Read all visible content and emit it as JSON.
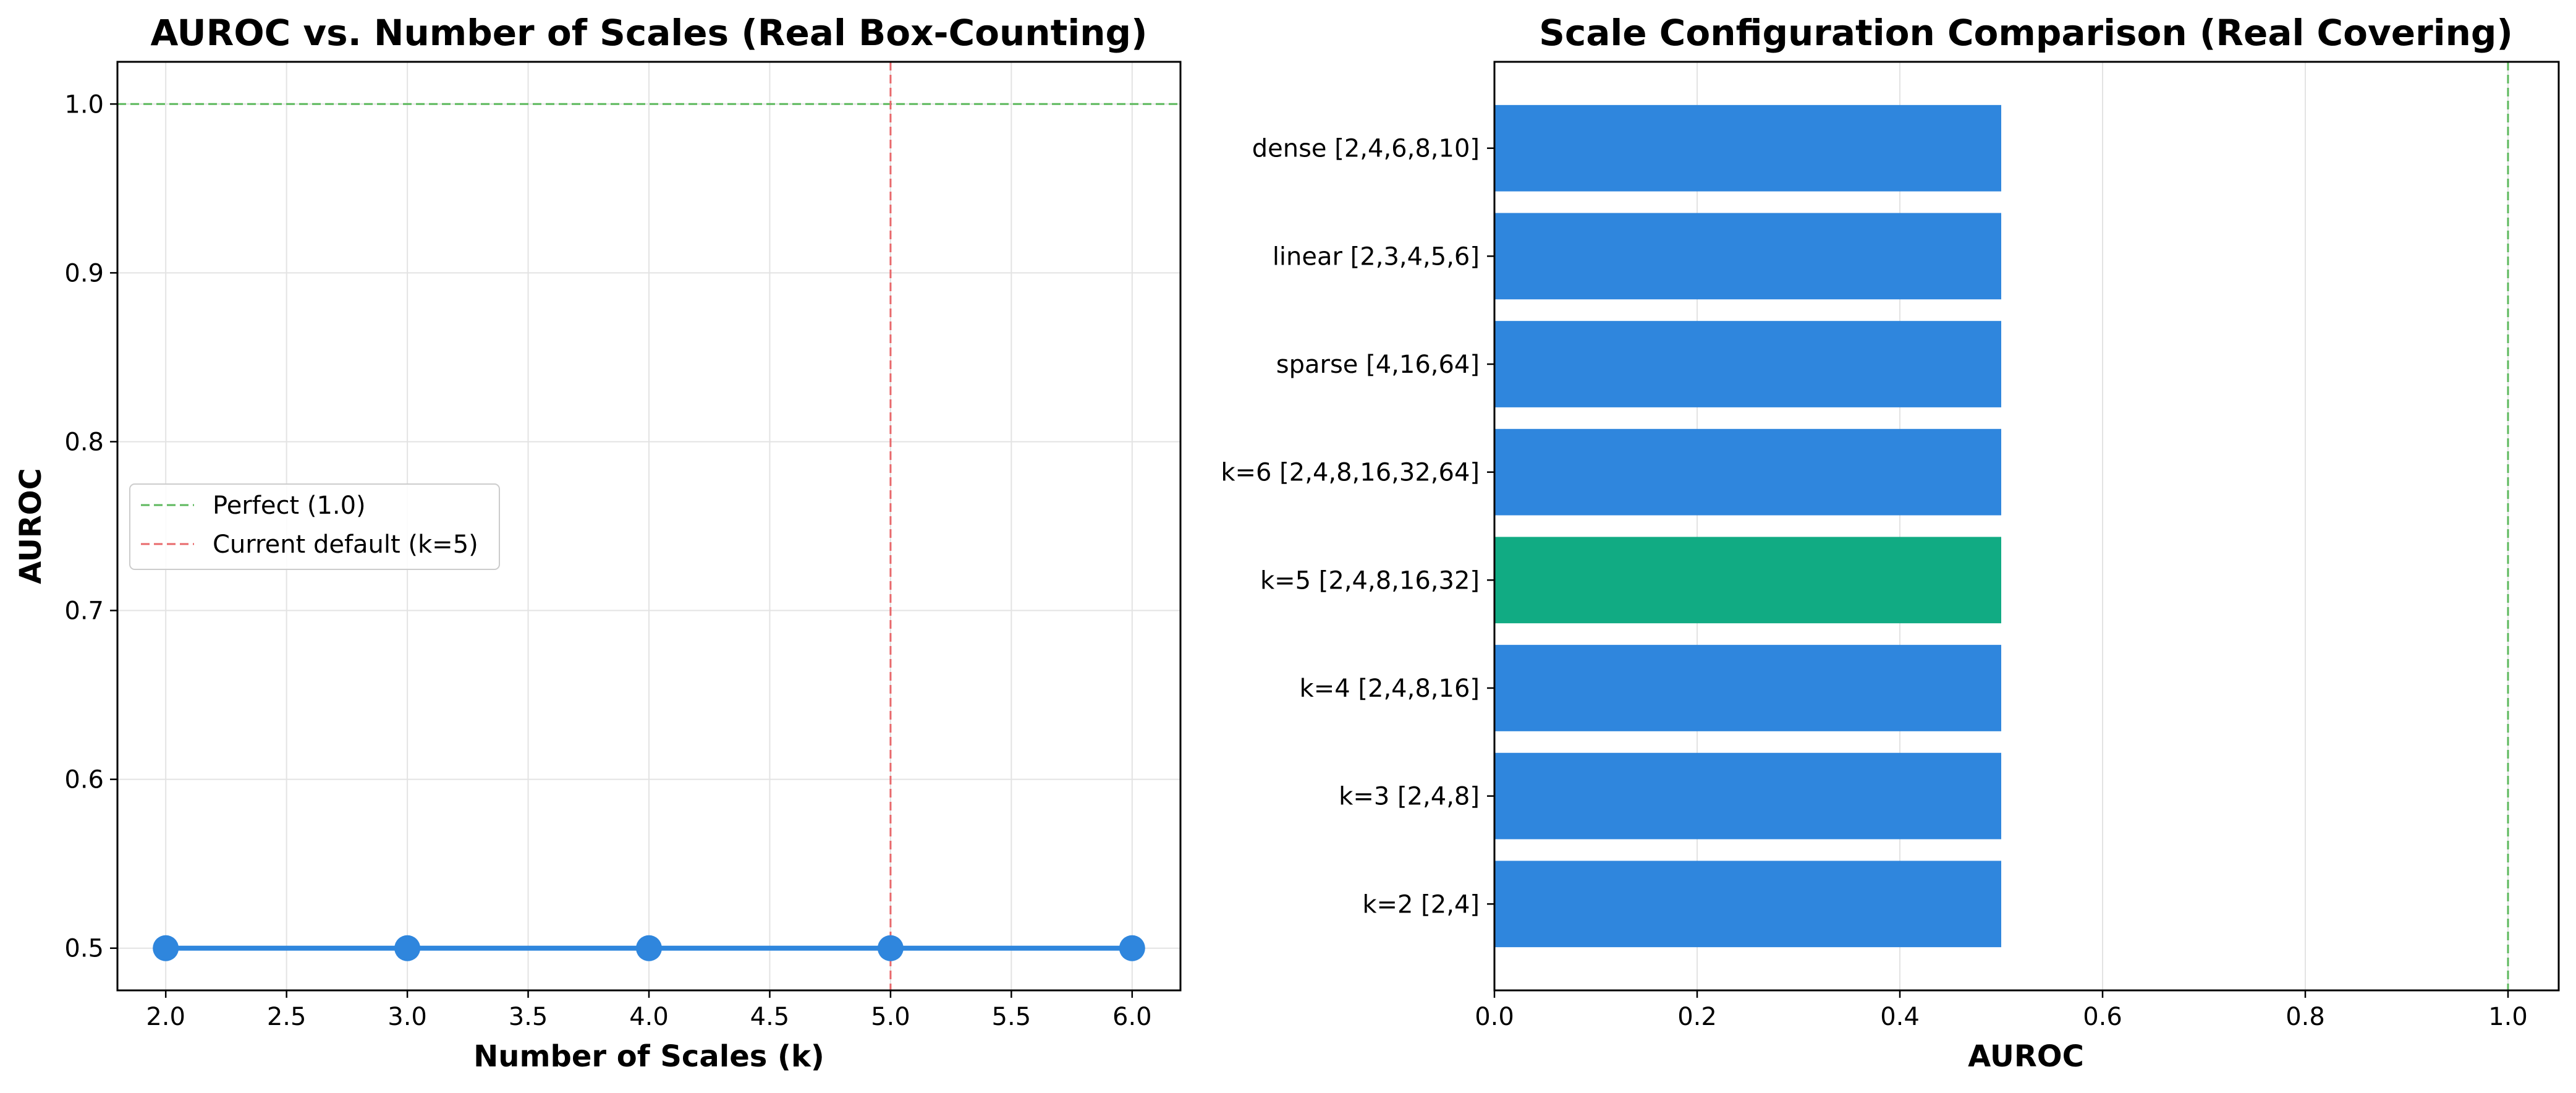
{
  "chart_data": [
    {
      "type": "line",
      "title": "AUROC vs. Number of Scales (Real Box-Counting)",
      "xlabel": "Number of Scales (k)",
      "ylabel": "AUROC",
      "xlim": [
        1.8,
        6.2
      ],
      "ylim": [
        0.475,
        1.025
      ],
      "xticks": [
        2.0,
        2.5,
        3.0,
        3.5,
        4.0,
        4.5,
        5.0,
        5.5,
        6.0
      ],
      "xtick_labels": [
        "2.0",
        "2.5",
        "3.0",
        "3.5",
        "4.0",
        "4.5",
        "5.0",
        "5.5",
        "6.0"
      ],
      "yticks": [
        0.5,
        0.6,
        0.7,
        0.8,
        0.9,
        1.0
      ],
      "ytick_labels": [
        "0.5",
        "0.6",
        "0.7",
        "0.8",
        "0.9",
        "1.0"
      ],
      "grid": true,
      "series": [
        {
          "x": [
            2,
            3,
            4,
            5,
            6
          ],
          "values": [
            0.5,
            0.5,
            0.5,
            0.5,
            0.5
          ],
          "color": "#2f86dd"
        }
      ],
      "reference_lines": [
        {
          "orientation": "horizontal",
          "value": 1.0,
          "label": "Perfect (1.0)",
          "color": "#5cb85c",
          "style": "dashed"
        },
        {
          "orientation": "vertical",
          "value": 5.0,
          "label": "Current default (k=5)",
          "color": "#e8686b",
          "style": "dashed"
        }
      ],
      "legend": {
        "placement": "center-left",
        "entries": [
          "Perfect (1.0)",
          "Current default (k=5)"
        ]
      }
    },
    {
      "type": "bar",
      "orientation": "horizontal",
      "title": "Scale Configuration Comparison (Real Covering)",
      "xlabel": "AUROC",
      "ylabel": "",
      "xlim": [
        0.0,
        1.05
      ],
      "xticks": [
        0.0,
        0.2,
        0.4,
        0.6,
        0.8,
        1.0
      ],
      "xtick_labels": [
        "0.0",
        "0.2",
        "0.4",
        "0.6",
        "0.8",
        "1.0"
      ],
      "grid": true,
      "categories": [
        "k=2 [2,4]",
        "k=3 [2,4,8]",
        "k=4 [2,4,8,16]",
        "k=5 [2,4,8,16,32]",
        "k=6 [2,4,8,16,32,64]",
        "sparse [4,16,64]",
        "linear [2,3,4,5,6]",
        "dense [2,4,6,8,10]"
      ],
      "values": [
        0.5,
        0.5,
        0.5,
        0.5,
        0.5,
        0.5,
        0.5,
        0.5
      ],
      "bar_colors": [
        "#2f86dd",
        "#2f86dd",
        "#2f86dd",
        "#11ab83",
        "#2f86dd",
        "#2f86dd",
        "#2f86dd",
        "#2f86dd"
      ],
      "reference_lines": [
        {
          "orientation": "vertical",
          "value": 1.0,
          "color": "#5cb85c",
          "style": "dashed"
        }
      ]
    }
  ]
}
